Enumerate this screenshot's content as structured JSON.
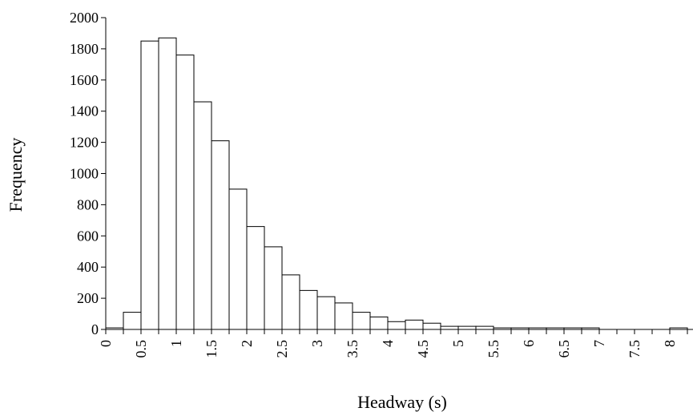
{
  "chart_data": {
    "type": "bar",
    "xlabel": "Headway (s)",
    "ylabel": "Frequency",
    "ylim": [
      0,
      2000
    ],
    "yticks": [
      0,
      200,
      400,
      600,
      800,
      1000,
      1200,
      1400,
      1600,
      1800,
      2000
    ],
    "ytick_labels": [
      "0",
      "200",
      "400",
      "600",
      "800",
      "1000",
      "1200",
      "1400",
      "1600",
      "1800",
      "2000"
    ],
    "xtick_labels": [
      "0",
      "0.5",
      "1",
      "1.5",
      "2",
      "2.5",
      "3",
      "3.5",
      "4",
      "4.5",
      "5",
      "5.5",
      "6",
      "6.5",
      "7",
      "7.5",
      "8"
    ],
    "bin_width": 0.25,
    "values": [
      10,
      110,
      1850,
      1870,
      1760,
      1460,
      1210,
      900,
      660,
      530,
      350,
      250,
      210,
      170,
      110,
      80,
      50,
      60,
      40,
      20,
      20,
      20,
      10,
      10,
      10,
      10,
      10,
      10,
      0,
      0,
      0,
      0,
      10
    ],
    "grid": false,
    "legend": "none",
    "bar_fill": "#ffffff",
    "bar_stroke": "#000000"
  }
}
